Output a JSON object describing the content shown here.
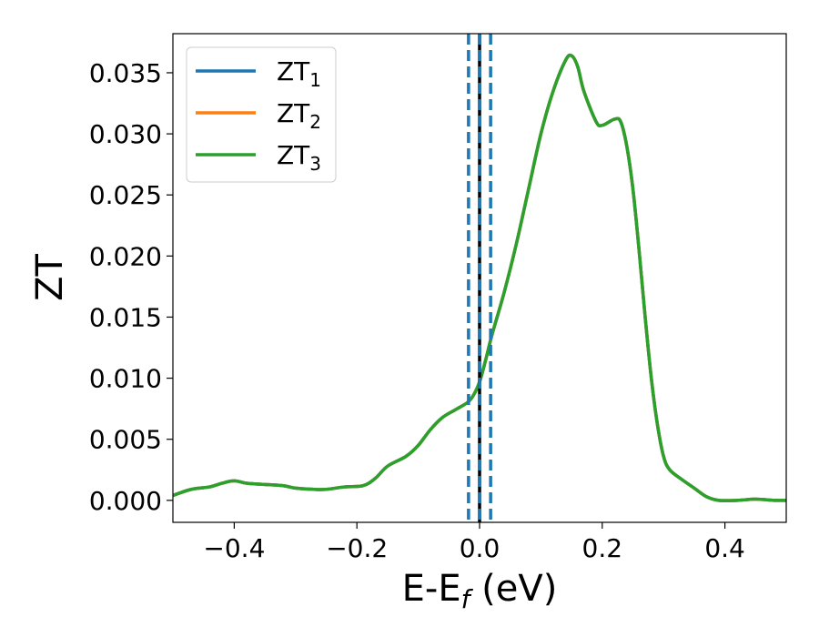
{
  "chart_data": {
    "type": "line",
    "xlabel": "E-E",
    "xlabel_sub": "f",
    "xlabel_unit": " (eV)",
    "ylabel": "ZT",
    "xlim": [
      -0.5,
      0.5
    ],
    "ylim": [
      -0.0018,
      0.0382
    ],
    "xticks": [
      -0.4,
      -0.2,
      0.0,
      0.2,
      0.4
    ],
    "xtick_labels": [
      "−0.4",
      "−0.2",
      "0.0",
      "0.2",
      "0.4"
    ],
    "yticks": [
      0.0,
      0.005,
      0.01,
      0.015,
      0.02,
      0.025,
      0.03,
      0.035
    ],
    "ytick_labels": [
      "0.000",
      "0.005",
      "0.010",
      "0.015",
      "0.020",
      "0.025",
      "0.030",
      "0.035"
    ],
    "legend_position": "top-left",
    "colors": {
      "ZT1": "#1f77b4",
      "ZT2": "#ff7f0e",
      "ZT3": "#2ca02c",
      "fermi": "#000000",
      "window": "#1f77b4"
    },
    "vlines": [
      {
        "x": 0.0,
        "style": "solid",
        "color": "#000000"
      },
      {
        "x": -0.018,
        "style": "dashed",
        "color": "#1f77b4"
      },
      {
        "x": 0.0,
        "style": "dashed",
        "color": "#1f77b4"
      },
      {
        "x": 0.018,
        "style": "dashed",
        "color": "#1f77b4"
      }
    ],
    "x": [
      -0.5,
      -0.47,
      -0.44,
      -0.42,
      -0.4,
      -0.38,
      -0.35,
      -0.32,
      -0.3,
      -0.27,
      -0.25,
      -0.22,
      -0.19,
      -0.17,
      -0.15,
      -0.12,
      -0.1,
      -0.08,
      -0.06,
      -0.04,
      -0.02,
      -0.01,
      0.0,
      0.01,
      0.02,
      0.04,
      0.06,
      0.08,
      0.1,
      0.12,
      0.14,
      0.15,
      0.16,
      0.17,
      0.19,
      0.2,
      0.22,
      0.23,
      0.24,
      0.25,
      0.26,
      0.27,
      0.28,
      0.29,
      0.3,
      0.31,
      0.33,
      0.35,
      0.37,
      0.39,
      0.42,
      0.45,
      0.48,
      0.5
    ],
    "series": [
      {
        "name_base": "ZT",
        "name_sub": "1",
        "color": "#1f77b4",
        "values": [
          0.0004,
          0.0009,
          0.0011,
          0.0014,
          0.0016,
          0.0014,
          0.0013,
          0.0012,
          0.001,
          0.0009,
          0.0009,
          0.0011,
          0.0012,
          0.0018,
          0.0028,
          0.0036,
          0.0045,
          0.0058,
          0.0068,
          0.0074,
          0.008,
          0.0086,
          0.0097,
          0.0115,
          0.0135,
          0.017,
          0.021,
          0.0255,
          0.03,
          0.0335,
          0.036,
          0.0364,
          0.0355,
          0.0335,
          0.031,
          0.0307,
          0.0312,
          0.031,
          0.029,
          0.0255,
          0.0205,
          0.015,
          0.01,
          0.0062,
          0.0036,
          0.0025,
          0.0017,
          0.001,
          0.0003,
          0.0,
          0.0,
          0.0001,
          0.0,
          0.0
        ]
      },
      {
        "name_base": "ZT",
        "name_sub": "2",
        "color": "#ff7f0e",
        "values": [
          0.0004,
          0.0009,
          0.0011,
          0.0014,
          0.0016,
          0.0014,
          0.0013,
          0.0012,
          0.001,
          0.0009,
          0.0009,
          0.0011,
          0.0012,
          0.0018,
          0.0028,
          0.0036,
          0.0045,
          0.0058,
          0.0068,
          0.0074,
          0.008,
          0.0086,
          0.0097,
          0.0115,
          0.0135,
          0.017,
          0.021,
          0.0255,
          0.03,
          0.0335,
          0.036,
          0.0364,
          0.0355,
          0.0335,
          0.031,
          0.0307,
          0.0312,
          0.031,
          0.029,
          0.0255,
          0.0205,
          0.015,
          0.01,
          0.0062,
          0.0036,
          0.0025,
          0.0017,
          0.001,
          0.0003,
          0.0,
          0.0,
          0.0001,
          0.0,
          0.0
        ]
      },
      {
        "name_base": "ZT",
        "name_sub": "3",
        "color": "#2ca02c",
        "values": [
          0.0004,
          0.0009,
          0.0011,
          0.0014,
          0.0016,
          0.0014,
          0.0013,
          0.0012,
          0.001,
          0.0009,
          0.0009,
          0.0011,
          0.0012,
          0.0018,
          0.0028,
          0.0036,
          0.0045,
          0.0058,
          0.0068,
          0.0074,
          0.008,
          0.0086,
          0.0097,
          0.0115,
          0.0135,
          0.017,
          0.021,
          0.0255,
          0.03,
          0.0335,
          0.036,
          0.0364,
          0.0355,
          0.0335,
          0.031,
          0.0307,
          0.0312,
          0.031,
          0.029,
          0.0255,
          0.0205,
          0.015,
          0.01,
          0.0062,
          0.0036,
          0.0025,
          0.0017,
          0.001,
          0.0003,
          0.0,
          0.0,
          0.0001,
          0.0,
          0.0
        ]
      }
    ]
  }
}
